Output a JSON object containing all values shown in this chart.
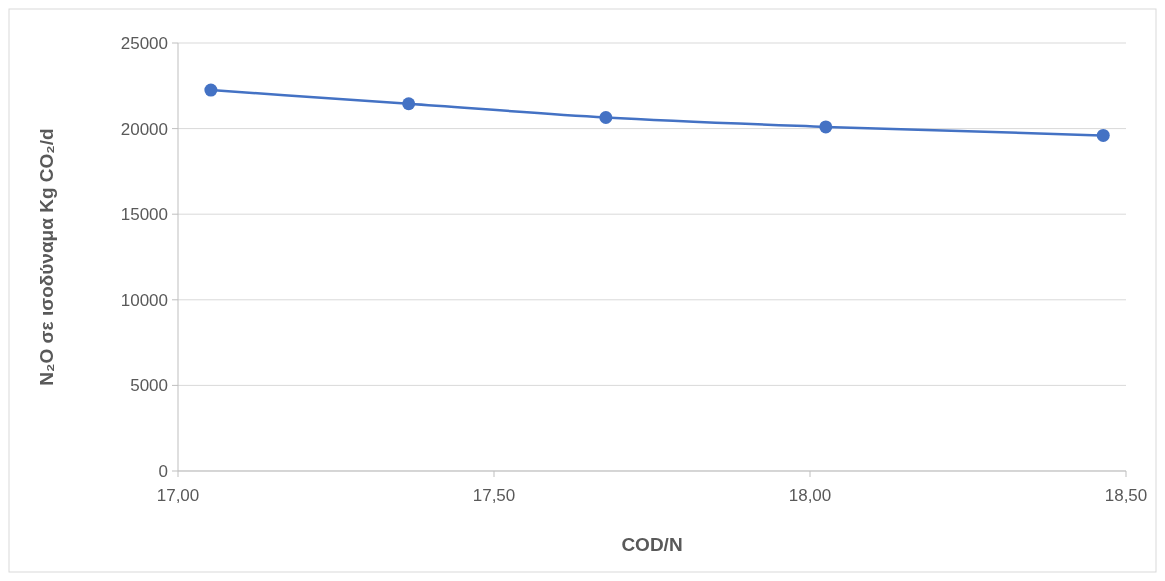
{
  "chart_data": {
    "type": "line",
    "xlabel": "COD/N",
    "ylabel": "N₂O σε ισοδύναμα Kg CO₂/d",
    "x": [
      17.052,
      17.365,
      17.677,
      18.025,
      18.464
    ],
    "series": [
      {
        "color": "#4472c4",
        "values": [
          22250,
          21450,
          20650,
          20100,
          19600
        ]
      }
    ],
    "xlim": [
      17,
      18.5
    ],
    "xticks": [
      {
        "value": 17,
        "label": "17,00"
      },
      {
        "value": 17.5,
        "label": "17,50"
      },
      {
        "value": 18,
        "label": "18,00"
      },
      {
        "value": 18.5,
        "label": "18,50"
      }
    ],
    "ylim": [
      0,
      25000
    ],
    "yticks": [
      0,
      5000,
      10000,
      15000,
      20000,
      25000
    ],
    "grid": "y",
    "marker": "circle"
  }
}
